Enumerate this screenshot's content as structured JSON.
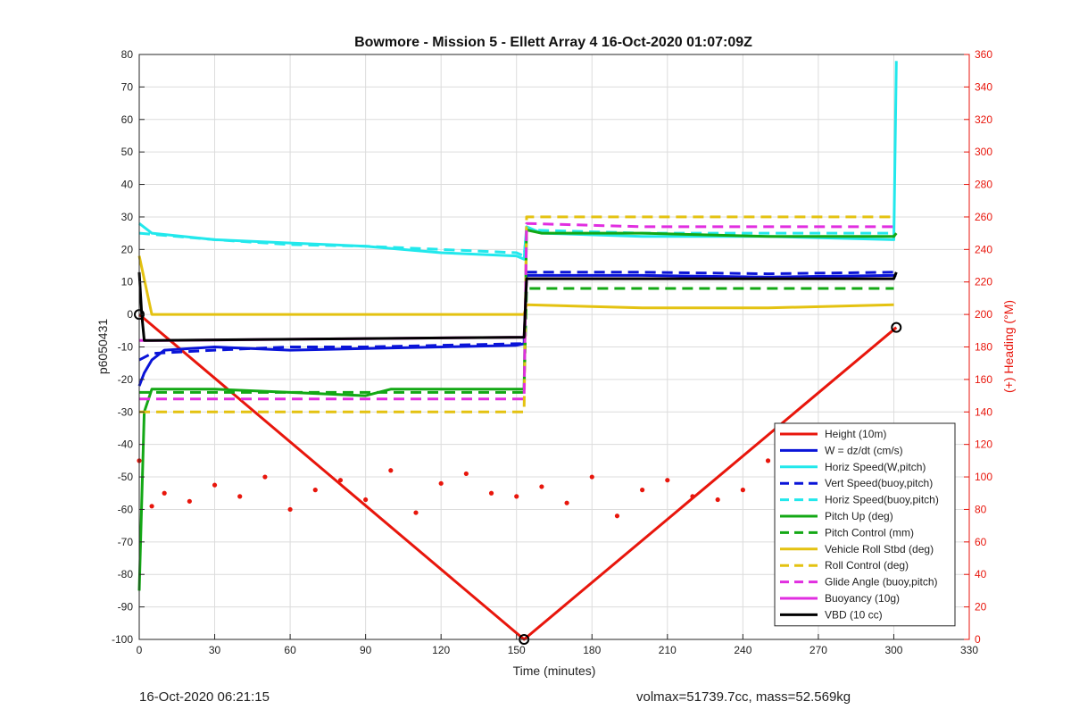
{
  "chart_data": {
    "type": "line",
    "title": "Bowmore - Mission 5 - Ellett Array 4 16-Oct-2020 01:07:09Z",
    "xlabel": "Time (minutes)",
    "ylabel": "p6050431",
    "y2label": "(+) Heading (°M)",
    "xlim": [
      0,
      330
    ],
    "ylim": [
      -100,
      80
    ],
    "y2lim": [
      0,
      360
    ],
    "xticks": [
      0,
      30,
      60,
      90,
      120,
      150,
      180,
      210,
      240,
      270,
      300,
      330
    ],
    "yticks": [
      -100,
      -90,
      -80,
      -70,
      -60,
      -50,
      -40,
      -30,
      -20,
      -10,
      0,
      10,
      20,
      30,
      40,
      50,
      60,
      70,
      80
    ],
    "y2ticks": [
      0,
      20,
      40,
      60,
      80,
      100,
      120,
      140,
      160,
      180,
      200,
      220,
      240,
      260,
      280,
      300,
      320,
      340,
      360
    ],
    "grid": true,
    "legend_position": "bottom-right",
    "series": [
      {
        "name": "Height (10m)",
        "color": "#e8160c",
        "style": "solid",
        "x": [
          0,
          153,
          301
        ],
        "y": [
          0,
          -100,
          -4
        ]
      },
      {
        "name": "W = dz/dt (cm/s)",
        "color": "#0a14d8",
        "style": "solid",
        "x": [
          0,
          2,
          5,
          10,
          30,
          60,
          90,
          120,
          150,
          153,
          154,
          160,
          200,
          250,
          300,
          301
        ],
        "y": [
          -22,
          -18,
          -14,
          -11,
          -10,
          -11,
          -10.5,
          -10,
          -9.5,
          -9,
          12,
          12,
          12,
          11.5,
          12,
          12
        ]
      },
      {
        "name": "Horiz Speed(W,pitch)",
        "color": "#22e8ec",
        "style": "solid",
        "x": [
          0,
          5,
          30,
          60,
          90,
          120,
          150,
          153,
          154,
          160,
          200,
          250,
          300,
          301
        ],
        "y": [
          28,
          25,
          23,
          22,
          21,
          19,
          18,
          17,
          27,
          25,
          24,
          24,
          23,
          78
        ]
      },
      {
        "name": "Vert Speed(buoy,pitch)",
        "color": "#0a14d8",
        "style": "dashed",
        "x": [
          0,
          5,
          30,
          60,
          90,
          120,
          150,
          153,
          154,
          160,
          200,
          250,
          300,
          301
        ],
        "y": [
          -14,
          -12,
          -11,
          -10,
          -10,
          -9.5,
          -9,
          -9,
          13,
          13,
          13,
          12.5,
          13,
          13
        ]
      },
      {
        "name": "Horiz Speed(buoy,pitch)",
        "color": "#22e8ec",
        "style": "dashed",
        "x": [
          0,
          30,
          60,
          90,
          120,
          150,
          153,
          154,
          200,
          250,
          300
        ],
        "y": [
          25,
          23,
          21.5,
          21,
          20,
          19,
          18,
          26,
          25,
          25,
          25
        ]
      },
      {
        "name": "Pitch Up (deg)",
        "color": "#13a815",
        "style": "solid",
        "x": [
          0,
          2,
          5,
          30,
          60,
          90,
          100,
          120,
          153,
          154,
          160,
          200,
          250,
          300,
          301
        ],
        "y": [
          -85,
          -30,
          -23,
          -23,
          -24,
          -25,
          -23,
          -23,
          -23,
          26,
          25,
          25,
          24,
          24,
          25
        ]
      },
      {
        "name": "Pitch Control (mm)",
        "color": "#13a815",
        "style": "dashed",
        "x": [
          0,
          153,
          154,
          300
        ],
        "y": [
          -24,
          -24,
          8,
          8
        ]
      },
      {
        "name": "Vehicle Roll Stbd (deg)",
        "color": "#e4c211",
        "style": "solid",
        "x": [
          0,
          5,
          30,
          60,
          90,
          120,
          153,
          154,
          200,
          250,
          300
        ],
        "y": [
          18,
          0,
          0,
          0,
          0,
          0,
          0,
          3,
          2,
          2,
          3
        ]
      },
      {
        "name": "Roll Control (deg)",
        "color": "#e4c211",
        "style": "dashed",
        "x": [
          0,
          153,
          154,
          300
        ],
        "y": [
          -30,
          -30,
          30,
          30
        ]
      },
      {
        "name": "Glide Angle (buoy,pitch)",
        "color": "#e12ee0",
        "style": "dashed",
        "x": [
          0,
          5,
          30,
          60,
          90,
          120,
          153,
          154,
          200,
          250,
          300
        ],
        "y": [
          -26,
          -26,
          -26,
          -26,
          -26,
          -26,
          -26,
          28,
          27,
          27,
          27
        ]
      },
      {
        "name": "Buoyancy (10g)",
        "color": "#e12ee0",
        "style": "solid",
        "x": [
          0,
          2,
          10,
          153,
          154,
          300
        ],
        "y": [
          -8,
          -8,
          -8,
          -7,
          11,
          11
        ]
      },
      {
        "name": "VBD (10 cc)",
        "color": "#000000",
        "style": "solid",
        "x": [
          0,
          1,
          2,
          5,
          153,
          154,
          300,
          301
        ],
        "y": [
          13,
          0,
          -8,
          -8,
          -7,
          11,
          11,
          13
        ]
      },
      {
        "name": "Heading",
        "axis": "right",
        "color": "#e8160c",
        "style": "markers",
        "x": [
          0,
          5,
          10,
          20,
          30,
          40,
          50,
          60,
          70,
          80,
          90,
          100,
          110,
          120,
          130,
          140,
          150,
          160,
          170,
          180,
          190,
          200,
          210,
          220,
          230,
          240,
          250,
          260,
          270,
          280,
          290,
          300
        ],
        "y": [
          110,
          82,
          90,
          85,
          95,
          88,
          100,
          80,
          92,
          98,
          86,
          104,
          78,
          96,
          102,
          90,
          88,
          94,
          84,
          100,
          76,
          92,
          98,
          88,
          86,
          92,
          110,
          84,
          90,
          96,
          88,
          92
        ]
      }
    ]
  },
  "footer": {
    "left": "16-Oct-2020 06:21:15",
    "right": "volmax=51739.7cc, mass=52.569kg"
  }
}
